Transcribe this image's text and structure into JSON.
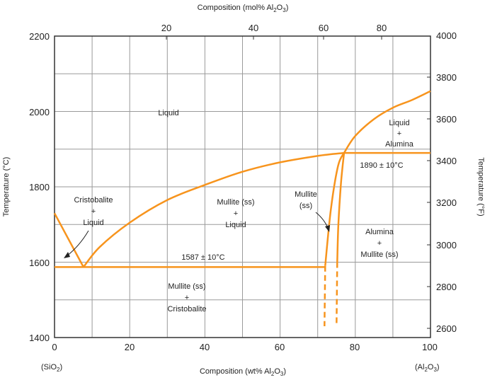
{
  "colors": {
    "phase_line": "#f7941d",
    "grid": "#9a9a9a",
    "frame": "#333333",
    "text": "#222222"
  },
  "axes": {
    "bottom": {
      "title_prefix": "Composition (wt% Al",
      "title_sub1": "2",
      "title_mid": "O",
      "title_sub2": "3",
      "title_suffix": ")",
      "min": 0,
      "max": 100,
      "ticks": [
        "0",
        "20",
        "40",
        "60",
        "80",
        "100"
      ],
      "end_left": "(SiO",
      "end_left_sub": "2",
      "end_left_close": ")",
      "end_right": "(Al",
      "end_right_sub1": "2",
      "end_right_mid": "O",
      "end_right_sub2": "3",
      "end_right_close": ")"
    },
    "top": {
      "title_prefix": "Composition (mol% Al",
      "title_sub1": "2",
      "title_mid": "O",
      "title_sub2": "3",
      "title_suffix": ")",
      "ticks": [
        {
          "label": "20",
          "wt": 29.8
        },
        {
          "label": "40",
          "wt": 53.1
        },
        {
          "label": "60",
          "wt": 71.8
        },
        {
          "label": "80",
          "wt": 87.2
        }
      ]
    },
    "left": {
      "title": "Temperature (°C)",
      "min": 1400,
      "max": 2200,
      "ticks": [
        "1400",
        "1600",
        "1800",
        "2000",
        "2200"
      ]
    },
    "right": {
      "title": "Temperature (°F)",
      "ticks": [
        "2600",
        "2800",
        "3000",
        "3200",
        "3400",
        "3600",
        "3800",
        "4000"
      ]
    }
  },
  "labels": {
    "liquid": "Liquid",
    "liquid_alumina_1": "Liquid",
    "liquid_alumina_2": "+",
    "liquid_alumina_3": "Alumina",
    "cristobalite_liquid_1": "Cristobalite",
    "cristobalite_liquid_2": "+",
    "cristobalite_liquid_3": "Liquid",
    "mullite_liquid_1": "Mullite (ss)",
    "mullite_liquid_2": "+",
    "mullite_liquid_3": "Liquid",
    "mullite_ss_1": "Mullite",
    "mullite_ss_2": "(ss)",
    "alumina_mullite_1": "Alumina",
    "alumina_mullite_2": "+",
    "alumina_mullite_3": "Mullite (ss)",
    "mullite_cristobalite_1": "Mullite (ss)",
    "mullite_cristobalite_2": "+",
    "mullite_cristobalite_3": "Cristobalite",
    "eutectic_temp": "1587 ± 10°C",
    "peritectic_temp": "1890 ± 10°C"
  },
  "diagram_data": {
    "eutectic": {
      "wt": 7.7,
      "temp_c": 1587
    },
    "peritectic": {
      "wt": 77,
      "temp_c": 1890
    },
    "liquidus_sio2_side": [
      [
        0,
        1730
      ],
      [
        7.7,
        1587
      ]
    ],
    "liquidus_mullite_side": [
      [
        7.7,
        1587
      ],
      [
        12,
        1640
      ],
      [
        20,
        1705
      ],
      [
        30,
        1765
      ],
      [
        40,
        1805
      ],
      [
        50,
        1840
      ],
      [
        60,
        1865
      ],
      [
        70,
        1882
      ],
      [
        77,
        1890
      ]
    ],
    "liquidus_alumina_side": [
      [
        77,
        1890
      ],
      [
        80,
        1935
      ],
      [
        85,
        1980
      ],
      [
        90,
        2010
      ],
      [
        95,
        2030
      ],
      [
        100,
        2054
      ]
    ],
    "mullite_ss_left_solid": [
      [
        72,
        1590
      ],
      [
        73.5,
        1740
      ],
      [
        75.4,
        1855
      ],
      [
        77,
        1890
      ]
    ],
    "mullite_ss_left_dashed": [
      [
        72,
        1590
      ],
      [
        71.8,
        1430
      ]
    ],
    "mullite_ss_right_solid": [
      [
        77,
        1890
      ],
      [
        76.2,
        1810
      ],
      [
        75.5,
        1700
      ],
      [
        75.2,
        1600
      ]
    ],
    "mullite_ss_right_dashed": [
      [
        75.2,
        1600
      ],
      [
        75,
        1430
      ]
    ]
  }
}
